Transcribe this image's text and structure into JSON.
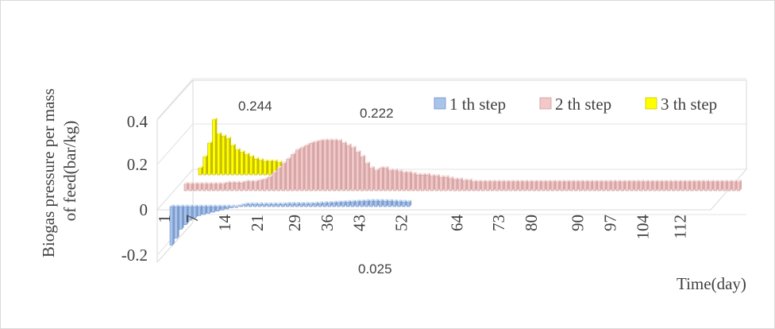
{
  "chart_data": {
    "type": "bar",
    "subtype": "3d-clustered-column",
    "title": "",
    "xlabel": "Time(day)",
    "ylabel": "Biogas  pressure per mass of  feed(bar/kg)",
    "ylim": [
      -0.2,
      0.4
    ],
    "yticks": [
      "0.4",
      "0.2",
      "0",
      "-0.2"
    ],
    "xticks": [
      "1",
      "7",
      "14",
      "21",
      "29",
      "36",
      "43",
      "52",
      "64",
      "73",
      "80",
      "90",
      "97",
      "104",
      "112"
    ],
    "legend_position": "top-right",
    "gridlines": true,
    "annotations": [
      "0.244",
      "0.222",
      "0.025"
    ],
    "series": [
      {
        "name": "1 th step",
        "color": "#a9c4eb",
        "x": [
          1,
          2,
          3,
          4,
          5,
          6,
          7,
          8,
          9,
          10,
          11,
          12,
          13,
          14,
          15,
          16,
          17,
          18,
          19,
          20,
          21,
          22,
          23,
          24,
          25,
          26,
          27,
          28,
          29,
          30,
          31,
          32,
          33,
          34,
          35,
          36,
          37,
          38,
          39,
          40,
          41,
          42,
          43,
          44,
          45,
          46,
          47,
          48,
          49,
          50,
          51,
          52
        ],
        "values": [
          -0.17,
          -0.14,
          -0.1,
          -0.08,
          -0.06,
          -0.05,
          -0.04,
          -0.035,
          -0.03,
          -0.025,
          -0.02,
          -0.015,
          -0.01,
          -0.005,
          0.0,
          0.005,
          0.01,
          0.01,
          0.01,
          0.01,
          0.01,
          0.01,
          0.01,
          0.01,
          0.01,
          0.012,
          0.012,
          0.012,
          0.012,
          0.012,
          0.012,
          0.013,
          0.014,
          0.015,
          0.016,
          0.017,
          0.018,
          0.019,
          0.02,
          0.021,
          0.022,
          0.023,
          0.024,
          0.025,
          0.025,
          0.025,
          0.024,
          0.024,
          0.023,
          0.022,
          0.021,
          0.02
        ]
      },
      {
        "name": "2 th step",
        "color": "#f2c8c8",
        "x": [
          1,
          2,
          3,
          4,
          5,
          6,
          7,
          8,
          9,
          10,
          11,
          12,
          13,
          14,
          15,
          16,
          17,
          18,
          19,
          20,
          21,
          22,
          23,
          24,
          25,
          26,
          27,
          28,
          29,
          30,
          31,
          32,
          33,
          34,
          35,
          36,
          37,
          38,
          39,
          40,
          41,
          42,
          43,
          44,
          45,
          46,
          47,
          48,
          49,
          50,
          51,
          52,
          53,
          54,
          55,
          56,
          57,
          58,
          59,
          60,
          61,
          62,
          63,
          64,
          65,
          66,
          67,
          68,
          69,
          70,
          71,
          72,
          73,
          74,
          75,
          76,
          77,
          78,
          79,
          80,
          81,
          82,
          83,
          84,
          85,
          86,
          87,
          88,
          89,
          90,
          91,
          92,
          93,
          94,
          95,
          96,
          97,
          98,
          99,
          100,
          101,
          102,
          103,
          104,
          105,
          106,
          107,
          108,
          109,
          110,
          111,
          112,
          113,
          114,
          115,
          116,
          117,
          118,
          119,
          120
        ],
        "values": [
          0.03,
          0.03,
          0.03,
          0.03,
          0.03,
          0.03,
          0.03,
          0.03,
          0.03,
          0.035,
          0.035,
          0.035,
          0.035,
          0.04,
          0.04,
          0.04,
          0.045,
          0.05,
          0.06,
          0.08,
          0.1,
          0.12,
          0.14,
          0.16,
          0.18,
          0.19,
          0.2,
          0.21,
          0.215,
          0.22,
          0.222,
          0.222,
          0.222,
          0.22,
          0.21,
          0.2,
          0.19,
          0.17,
          0.15,
          0.12,
          0.1,
          0.09,
          0.1,
          0.1,
          0.09,
          0.09,
          0.085,
          0.08,
          0.08,
          0.075,
          0.07,
          0.07,
          0.07,
          0.065,
          0.065,
          0.06,
          0.06,
          0.055,
          0.05,
          0.05,
          0.045,
          0.045,
          0.04,
          0.04,
          0.04,
          0.04,
          0.04,
          0.04,
          0.04,
          0.04,
          0.04,
          0.04,
          0.04,
          0.04,
          0.04,
          0.04,
          0.04,
          0.04,
          0.04,
          0.04,
          0.04,
          0.04,
          0.04,
          0.04,
          0.04,
          0.04,
          0.04,
          0.04,
          0.04,
          0.04,
          0.04,
          0.04,
          0.04,
          0.04,
          0.04,
          0.04,
          0.04,
          0.04,
          0.04,
          0.04,
          0.04,
          0.04,
          0.04,
          0.04,
          0.04,
          0.04,
          0.04,
          0.04,
          0.04,
          0.04,
          0.04,
          0.04,
          0.04,
          0.04,
          0.04,
          0.04,
          0.04,
          0.04,
          0.04,
          0.04
        ]
      },
      {
        "name": "3 th step",
        "color": "#ffff00",
        "x": [
          1,
          2,
          3,
          4,
          5,
          6,
          7,
          8,
          9,
          10,
          11,
          12,
          13,
          14,
          15,
          16,
          17,
          18,
          19,
          20,
          21,
          22,
          23,
          24
        ],
        "values": [
          0.03,
          0.08,
          0.14,
          0.244,
          0.18,
          0.17,
          0.16,
          0.13,
          0.11,
          0.1,
          0.09,
          0.08,
          0.07,
          0.065,
          0.06,
          0.06,
          0.06,
          0.055,
          0.05,
          0.05,
          0.05,
          0.05,
          0.05,
          0.05
        ]
      }
    ]
  }
}
